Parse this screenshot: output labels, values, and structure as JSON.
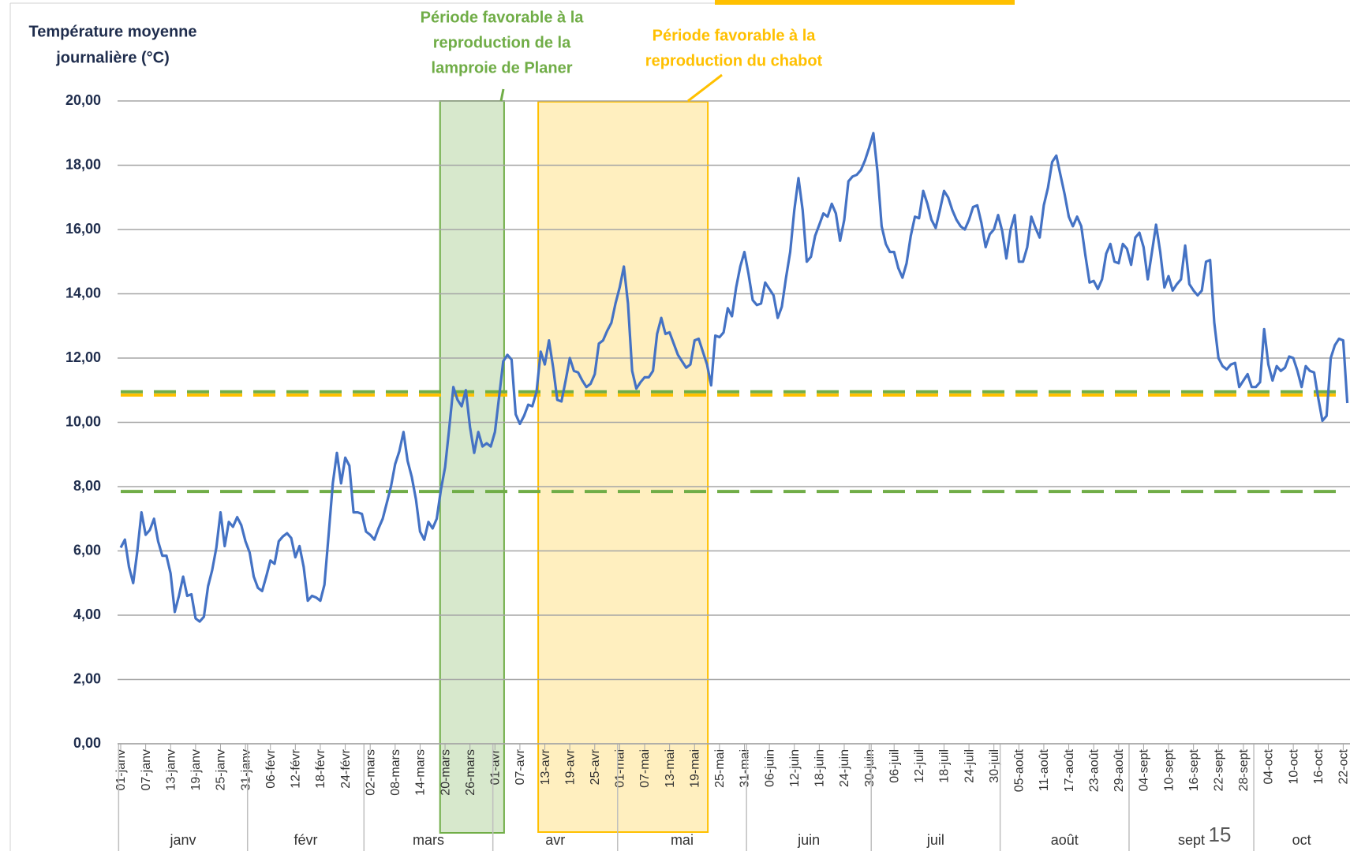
{
  "chart_data": {
    "type": "line",
    "title": [
      "Température moyenne",
      "journalière (°C)"
    ],
    "annotations": [
      {
        "lines": [
          "Période favorable à la",
          "reproduction de la",
          "lamproie de Planer"
        ],
        "color": "#70ad47"
      },
      {
        "lines": [
          "Période favorable à la",
          "reproduction du chabot"
        ],
        "color": "#ffc000"
      }
    ],
    "page_number": "15",
    "months": [
      "janv",
      "févr",
      "mars",
      "avr",
      "mai",
      "juin",
      "juil",
      "août",
      "sept",
      "oct"
    ],
    "categories": [
      "01-janv",
      null,
      null,
      null,
      null,
      null,
      "07-janv",
      null,
      null,
      null,
      null,
      null,
      "13-janv",
      null,
      null,
      null,
      null,
      null,
      "19-janv",
      null,
      null,
      null,
      null,
      null,
      "25-janv",
      null,
      null,
      null,
      null,
      null,
      "31-janv",
      null,
      null,
      null,
      null,
      null,
      "06-févr",
      null,
      null,
      null,
      null,
      null,
      "12-févr",
      null,
      null,
      null,
      null,
      null,
      "18-févr",
      null,
      null,
      null,
      null,
      null,
      "24-févr",
      null,
      null,
      null,
      null,
      null,
      "02-mars",
      null,
      null,
      null,
      null,
      null,
      "08-mars",
      null,
      null,
      null,
      null,
      null,
      "14-mars",
      null,
      null,
      null,
      null,
      null,
      "20-mars",
      null,
      null,
      null,
      null,
      null,
      "26-mars",
      null,
      null,
      null,
      null,
      null,
      "01-avr",
      null,
      null,
      null,
      null,
      null,
      "07-avr",
      null,
      null,
      null,
      null,
      null,
      "13-avr",
      null,
      null,
      null,
      null,
      null,
      "19-avr",
      null,
      null,
      null,
      null,
      null,
      "25-avr",
      null,
      null,
      null,
      null,
      null,
      "01-mai",
      null,
      null,
      null,
      null,
      null,
      "07-mai",
      null,
      null,
      null,
      null,
      null,
      "13-mai",
      null,
      null,
      null,
      null,
      null,
      "19-mai",
      null,
      null,
      null,
      null,
      null,
      "25-mai",
      null,
      null,
      null,
      null,
      null,
      "31-mai",
      null,
      null,
      null,
      null,
      null,
      "06-juin",
      null,
      null,
      null,
      null,
      null,
      "12-juin",
      null,
      null,
      null,
      null,
      null,
      "18-juin",
      null,
      null,
      null,
      null,
      null,
      "24-juin",
      null,
      null,
      null,
      null,
      null,
      "30-juin",
      null,
      null,
      null,
      null,
      null,
      "06-juil",
      null,
      null,
      null,
      null,
      null,
      "12-juil",
      null,
      null,
      null,
      null,
      null,
      "18-juil",
      null,
      null,
      null,
      null,
      null,
      "24-juil",
      null,
      null,
      null,
      null,
      null,
      "30-juil",
      null,
      null,
      null,
      null,
      null,
      "05-août",
      null,
      null,
      null,
      null,
      null,
      "11-août",
      null,
      null,
      null,
      null,
      null,
      "17-août",
      null,
      null,
      null,
      null,
      null,
      "23-août",
      null,
      null,
      null,
      null,
      null,
      "29-août",
      null,
      null,
      null,
      null,
      null,
      "04-sept",
      null,
      null,
      null,
      null,
      null,
      "10-sept",
      null,
      null,
      null,
      null,
      null,
      "16-sept",
      null,
      null,
      null,
      null,
      null,
      "22-sept",
      null,
      null,
      null,
      null,
      null,
      "28-sept",
      null,
      null,
      null,
      null,
      null,
      "04-oct",
      null,
      null,
      null,
      null,
      null,
      "10-oct",
      null,
      null,
      null,
      null,
      null,
      "16-oct",
      null,
      null,
      null,
      null,
      null,
      "22-oct",
      null
    ],
    "series": [
      {
        "name": "Température",
        "color": "#4472c4",
        "values": [
          6.1,
          6.35,
          5.5,
          5.0,
          6.0,
          7.2,
          6.5,
          6.65,
          7.0,
          6.3,
          5.85,
          5.85,
          5.3,
          4.1,
          4.6,
          5.2,
          4.6,
          4.65,
          3.9,
          3.8,
          3.95,
          4.9,
          5.4,
          6.1,
          7.2,
          6.15,
          6.9,
          6.75,
          7.05,
          6.8,
          6.3,
          5.95,
          5.2,
          4.85,
          4.75,
          5.2,
          5.7,
          5.6,
          6.3,
          6.45,
          6.55,
          6.4,
          5.8,
          6.15,
          5.5,
          4.45,
          4.6,
          4.55,
          4.45,
          4.95,
          6.5,
          8.1,
          9.05,
          8.1,
          8.9,
          8.65,
          7.2,
          7.2,
          7.15,
          6.6,
          6.5,
          6.35,
          6.7,
          7.0,
          7.5,
          8.0,
          8.7,
          9.1,
          9.7,
          8.8,
          8.3,
          7.6,
          6.6,
          6.35,
          6.9,
          6.7,
          7.0,
          7.9,
          8.6,
          9.8,
          11.1,
          10.7,
          10.5,
          11.0,
          9.85,
          9.05,
          9.7,
          9.25,
          9.35,
          9.25,
          9.7,
          10.8,
          11.9,
          12.1,
          11.95,
          10.25,
          9.95,
          10.2,
          10.55,
          10.5,
          10.95,
          12.2,
          11.8,
          12.55,
          11.7,
          10.7,
          10.65,
          11.3,
          12.0,
          11.6,
          11.55,
          11.3,
          11.1,
          11.2,
          11.5,
          12.45,
          12.55,
          12.85,
          13.1,
          13.7,
          14.2,
          14.85,
          13.7,
          11.6,
          11.05,
          11.25,
          11.4,
          11.4,
          11.6,
          12.75,
          13.25,
          12.75,
          12.8,
          12.45,
          12.1,
          11.9,
          11.7,
          11.8,
          12.55,
          12.6,
          12.2,
          11.8,
          11.15,
          12.7,
          12.65,
          12.8,
          13.55,
          13.3,
          14.2,
          14.85,
          15.3,
          14.6,
          13.8,
          13.65,
          13.7,
          14.35,
          14.15,
          13.95,
          13.25,
          13.6,
          14.5,
          15.3,
          16.6,
          17.6,
          16.6,
          15.0,
          15.15,
          15.8,
          16.15,
          16.5,
          16.4,
          16.8,
          16.5,
          15.65,
          16.3,
          17.5,
          17.65,
          17.7,
          17.85,
          18.15,
          18.55,
          19.0,
          17.8,
          16.1,
          15.55,
          15.3,
          15.3,
          14.8,
          14.5,
          14.95,
          15.8,
          16.4,
          16.35,
          17.2,
          16.8,
          16.3,
          16.05,
          16.6,
          17.2,
          17.0,
          16.6,
          16.3,
          16.1,
          16.0,
          16.3,
          16.7,
          16.75,
          16.2,
          15.45,
          15.85,
          16.0,
          16.45,
          15.95,
          15.1,
          16.0,
          16.45,
          15.0,
          15.0,
          15.45,
          16.4,
          16.05,
          15.75,
          16.75,
          17.3,
          18.1,
          18.3,
          17.7,
          17.1,
          16.4,
          16.1,
          16.4,
          16.1,
          15.2,
          14.35,
          14.4,
          14.15,
          14.45,
          15.25,
          15.55,
          15.0,
          14.95,
          15.55,
          15.4,
          14.9,
          15.75,
          15.9,
          15.45,
          14.45,
          15.3,
          16.15,
          15.3,
          14.2,
          14.55,
          14.1,
          14.3,
          14.45,
          15.5,
          14.3,
          14.1,
          13.95,
          14.1,
          15.0,
          15.05,
          13.1,
          12.0,
          11.75,
          11.65,
          11.8,
          11.85,
          11.1,
          11.3,
          11.5,
          11.1,
          11.1,
          11.25,
          12.9,
          11.8,
          11.3,
          11.75,
          11.6,
          11.7,
          12.05,
          12.0,
          11.6,
          11.1,
          11.75,
          11.6,
          11.55,
          10.75,
          10.05,
          10.2,
          12.0,
          12.4,
          12.6,
          12.55,
          10.6
        ]
      }
    ],
    "reference_lines": [
      {
        "value": 10.95,
        "color": "#70ad47"
      },
      {
        "value": 7.85,
        "color": "#70ad47"
      },
      {
        "value": 10.85,
        "color": "#ffc000"
      }
    ],
    "ylim": [
      0,
      20
    ],
    "yticks": [
      {
        "value": 0,
        "label": "0,00"
      },
      {
        "value": 2,
        "label": "2,00"
      },
      {
        "value": 4,
        "label": "4,00"
      },
      {
        "value": 6,
        "label": "6,00"
      },
      {
        "value": 8,
        "label": "8,00"
      },
      {
        "value": 10,
        "label": "10,00"
      },
      {
        "value": 12,
        "label": "12,00"
      },
      {
        "value": 14,
        "label": "14,00"
      },
      {
        "value": 16,
        "label": "16,00"
      },
      {
        "value": 18,
        "label": "18,00"
      },
      {
        "value": 20,
        "label": "20,00"
      }
    ],
    "grid": true
  }
}
